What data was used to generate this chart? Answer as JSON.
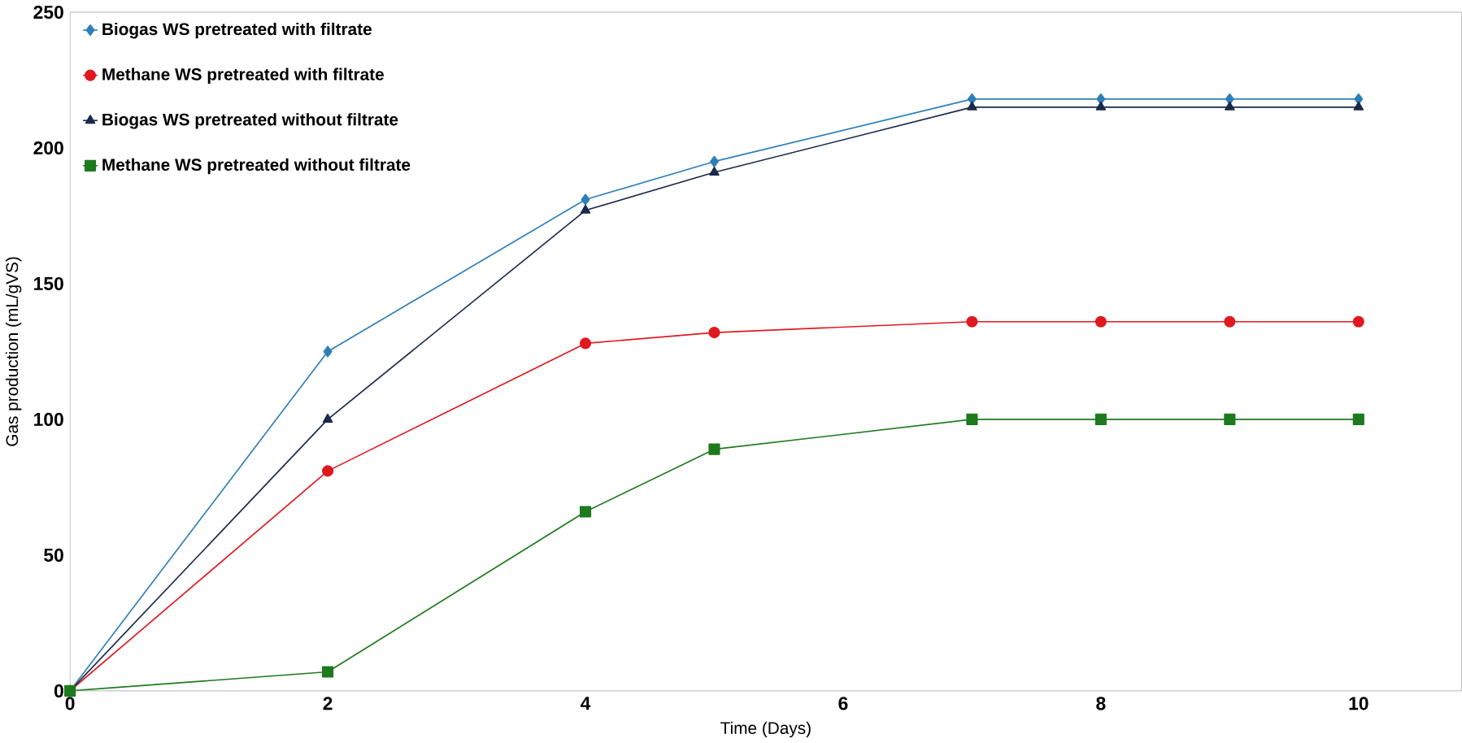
{
  "chart_data": {
    "type": "line",
    "xlabel": "Time (Days)",
    "ylabel": "Gas production  (mL/gVS)",
    "x": [
      0,
      2,
      4,
      5,
      7,
      8,
      9,
      10
    ],
    "series": [
      {
        "name": "Biogas WS pretreated with filtrate",
        "color": "#2e7fb8",
        "marker": "diamond",
        "values": [
          0,
          125,
          181,
          195,
          218,
          218,
          218,
          218
        ]
      },
      {
        "name": "Methane WS pretreated with filtrate",
        "color": "#e0191f",
        "marker": "circle",
        "values": [
          0,
          81,
          128,
          132,
          136,
          136,
          136,
          136
        ]
      },
      {
        "name": "Biogas WS pretreated without filtrate",
        "color": "#1b2a4a",
        "marker": "triangle",
        "values": [
          0,
          100,
          177,
          191,
          215,
          215,
          215,
          215
        ]
      },
      {
        "name": "Methane WS pretreated without filtrate",
        "color": "#1d7a1d",
        "marker": "square",
        "values": [
          0,
          7,
          66,
          89,
          100,
          100,
          100,
          100
        ]
      }
    ],
    "xlim": [
      0,
      10.8
    ],
    "ylim": [
      0,
      250
    ],
    "xticks": [
      0,
      2,
      4,
      6,
      8,
      10
    ],
    "yticks": [
      0,
      50,
      100,
      150,
      200,
      250
    ],
    "grid": false,
    "legend": "top left",
    "line_style": "solid"
  }
}
